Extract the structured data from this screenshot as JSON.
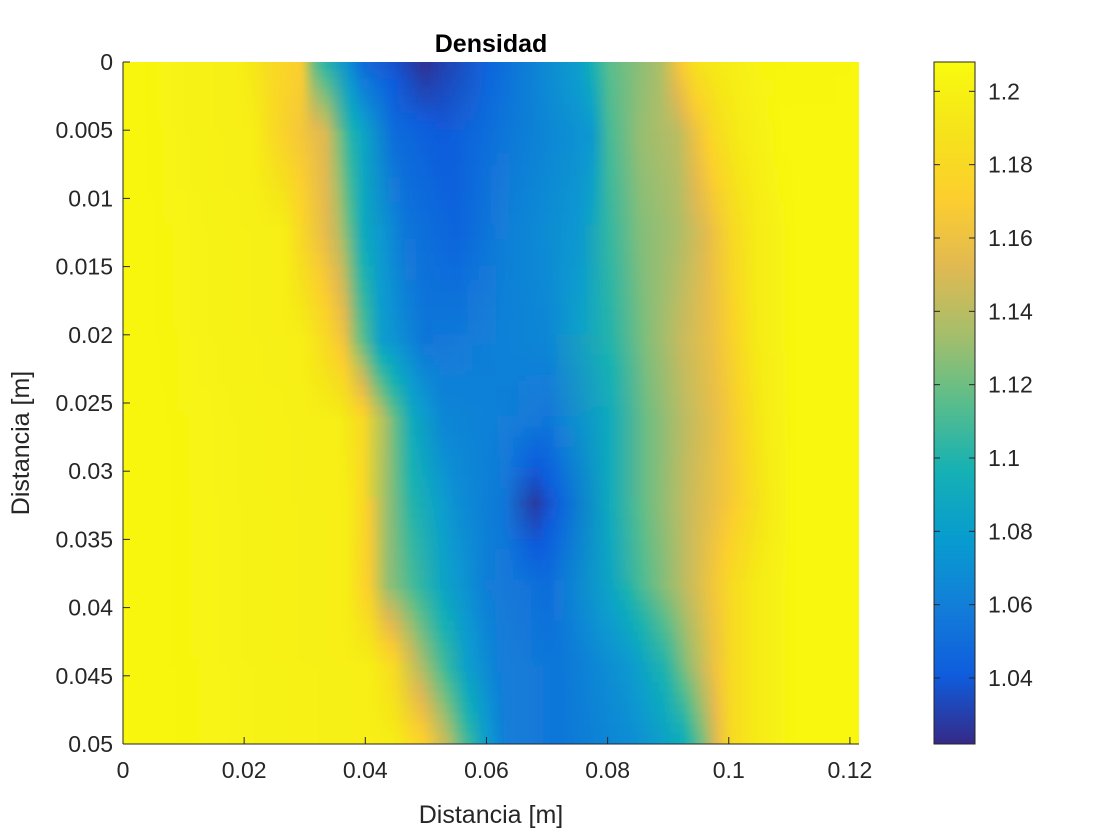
{
  "chart_data": {
    "type": "heatmap",
    "title": "Densidad",
    "xlabel": "Distancia [m]",
    "ylabel": "Distancia [m]",
    "xlim": [
      0,
      0.1215
    ],
    "ylim": [
      0,
      0.05
    ],
    "y_reversed": true,
    "x_ticks": [
      "0",
      "0.02",
      "0.04",
      "0.06",
      "0.08",
      "0.1",
      "0.12"
    ],
    "y_ticks": [
      "0",
      "0.005",
      "0.01",
      "0.015",
      "0.02",
      "0.025",
      "0.03",
      "0.035",
      "0.04",
      "0.045",
      "0.05"
    ],
    "colormap": "parula",
    "clim": [
      1.022,
      1.208
    ],
    "colorbar_ticks": [
      "1.04",
      "1.06",
      "1.08",
      "1.1",
      "1.12",
      "1.14",
      "1.16",
      "1.18",
      "1.2"
    ],
    "grid": false,
    "profiles": [
      {
        "y": 0.0,
        "points": [
          [
            0,
            1.205
          ],
          [
            0.02,
            1.198
          ],
          [
            0.025,
            1.182
          ],
          [
            0.03,
            1.17
          ],
          [
            0.032,
            1.12
          ],
          [
            0.04,
            1.05
          ],
          [
            0.05,
            1.025
          ],
          [
            0.06,
            1.045
          ],
          [
            0.075,
            1.08
          ],
          [
            0.08,
            1.115
          ],
          [
            0.088,
            1.135
          ],
          [
            0.092,
            1.17
          ],
          [
            0.094,
            1.185
          ],
          [
            0.098,
            1.195
          ],
          [
            0.105,
            1.203
          ],
          [
            0.1215,
            1.205
          ]
        ]
      },
      {
        "y": 0.005,
        "points": [
          [
            0,
            1.205
          ],
          [
            0.022,
            1.198
          ],
          [
            0.026,
            1.178
          ],
          [
            0.03,
            1.165
          ],
          [
            0.034,
            1.15
          ],
          [
            0.038,
            1.1
          ],
          [
            0.045,
            1.05
          ],
          [
            0.053,
            1.04
          ],
          [
            0.063,
            1.055
          ],
          [
            0.077,
            1.075
          ],
          [
            0.08,
            1.11
          ],
          [
            0.085,
            1.13
          ],
          [
            0.091,
            1.14
          ],
          [
            0.094,
            1.16
          ],
          [
            0.097,
            1.18
          ],
          [
            0.101,
            1.195
          ],
          [
            0.108,
            1.205
          ],
          [
            0.1215,
            1.205
          ]
        ]
      },
      {
        "y": 0.012,
        "points": [
          [
            0,
            1.205
          ],
          [
            0.027,
            1.198
          ],
          [
            0.03,
            1.178
          ],
          [
            0.033,
            1.16
          ],
          [
            0.036,
            1.14
          ],
          [
            0.04,
            1.09
          ],
          [
            0.047,
            1.055
          ],
          [
            0.055,
            1.045
          ],
          [
            0.063,
            1.06
          ],
          [
            0.075,
            1.075
          ],
          [
            0.08,
            1.105
          ],
          [
            0.085,
            1.125
          ],
          [
            0.091,
            1.135
          ],
          [
            0.096,
            1.155
          ],
          [
            0.1,
            1.18
          ],
          [
            0.104,
            1.195
          ],
          [
            0.11,
            1.205
          ],
          [
            0.1215,
            1.205
          ]
        ]
      },
      {
        "y": 0.02,
        "points": [
          [
            0,
            1.205
          ],
          [
            0.03,
            1.198
          ],
          [
            0.034,
            1.18
          ],
          [
            0.037,
            1.16
          ],
          [
            0.04,
            1.115
          ],
          [
            0.043,
            1.08
          ],
          [
            0.05,
            1.055
          ],
          [
            0.06,
            1.06
          ],
          [
            0.07,
            1.065
          ],
          [
            0.08,
            1.1
          ],
          [
            0.086,
            1.125
          ],
          [
            0.092,
            1.145
          ],
          [
            0.097,
            1.16
          ],
          [
            0.101,
            1.18
          ],
          [
            0.104,
            1.195
          ],
          [
            0.11,
            1.205
          ],
          [
            0.1215,
            1.205
          ]
        ]
      },
      {
        "y": 0.026,
        "points": [
          [
            0,
            1.205
          ],
          [
            0.036,
            1.198
          ],
          [
            0.04,
            1.18
          ],
          [
            0.045,
            1.12
          ],
          [
            0.048,
            1.09
          ],
          [
            0.053,
            1.065
          ],
          [
            0.063,
            1.06
          ],
          [
            0.07,
            1.055
          ],
          [
            0.08,
            1.09
          ],
          [
            0.086,
            1.12
          ],
          [
            0.092,
            1.14
          ],
          [
            0.098,
            1.16
          ],
          [
            0.102,
            1.18
          ],
          [
            0.105,
            1.195
          ],
          [
            0.11,
            1.205
          ],
          [
            0.1215,
            1.205
          ]
        ]
      },
      {
        "y": 0.032,
        "points": [
          [
            0,
            1.205
          ],
          [
            0.037,
            1.198
          ],
          [
            0.04,
            1.18
          ],
          [
            0.044,
            1.13
          ],
          [
            0.048,
            1.1
          ],
          [
            0.055,
            1.07
          ],
          [
            0.063,
            1.055
          ],
          [
            0.068,
            1.028
          ],
          [
            0.072,
            1.045
          ],
          [
            0.08,
            1.09
          ],
          [
            0.086,
            1.12
          ],
          [
            0.093,
            1.145
          ],
          [
            0.099,
            1.165
          ],
          [
            0.103,
            1.182
          ],
          [
            0.106,
            1.195
          ],
          [
            0.11,
            1.205
          ],
          [
            0.1215,
            1.205
          ]
        ]
      },
      {
        "y": 0.038,
        "points": [
          [
            0,
            1.205
          ],
          [
            0.037,
            1.198
          ],
          [
            0.041,
            1.17
          ],
          [
            0.044,
            1.13
          ],
          [
            0.048,
            1.11
          ],
          [
            0.053,
            1.085
          ],
          [
            0.06,
            1.06
          ],
          [
            0.07,
            1.05
          ],
          [
            0.08,
            1.085
          ],
          [
            0.085,
            1.11
          ],
          [
            0.092,
            1.14
          ],
          [
            0.097,
            1.165
          ],
          [
            0.1,
            1.182
          ],
          [
            0.104,
            1.195
          ],
          [
            0.11,
            1.205
          ],
          [
            0.1215,
            1.205
          ]
        ]
      },
      {
        "y": 0.044,
        "points": [
          [
            0,
            1.205
          ],
          [
            0.041,
            1.198
          ],
          [
            0.045,
            1.18
          ],
          [
            0.049,
            1.14
          ],
          [
            0.053,
            1.11
          ],
          [
            0.057,
            1.08
          ],
          [
            0.062,
            1.06
          ],
          [
            0.072,
            1.055
          ],
          [
            0.083,
            1.075
          ],
          [
            0.089,
            1.1
          ],
          [
            0.093,
            1.13
          ],
          [
            0.097,
            1.16
          ],
          [
            0.1,
            1.182
          ],
          [
            0.104,
            1.195
          ],
          [
            0.11,
            1.205
          ],
          [
            0.1215,
            1.205
          ]
        ]
      },
      {
        "y": 0.05,
        "points": [
          [
            0,
            1.205
          ],
          [
            0.045,
            1.198
          ],
          [
            0.05,
            1.175
          ],
          [
            0.054,
            1.14
          ],
          [
            0.057,
            1.11
          ],
          [
            0.06,
            1.08
          ],
          [
            0.063,
            1.06
          ],
          [
            0.072,
            1.055
          ],
          [
            0.085,
            1.07
          ],
          [
            0.092,
            1.09
          ],
          [
            0.095,
            1.12
          ],
          [
            0.098,
            1.16
          ],
          [
            0.1,
            1.182
          ],
          [
            0.104,
            1.195
          ],
          [
            0.11,
            1.205
          ],
          [
            0.1215,
            1.205
          ]
        ]
      }
    ]
  }
}
